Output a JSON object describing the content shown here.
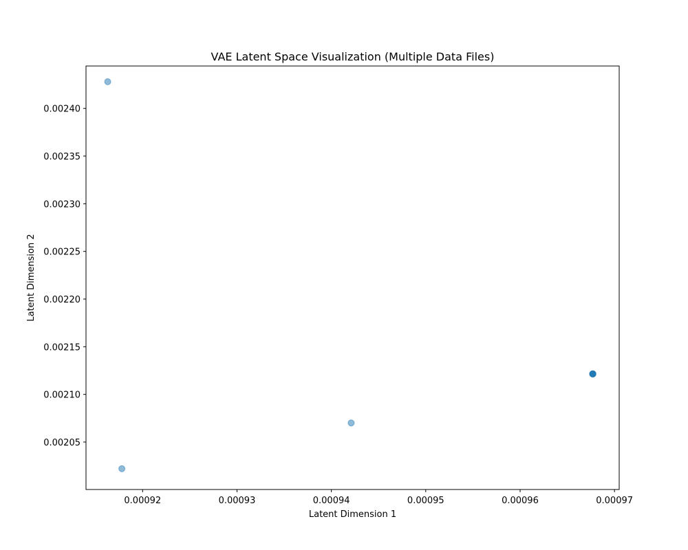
{
  "chart_data": {
    "type": "scatter",
    "title": "VAE Latent Space Visualization (Multiple Data Files)",
    "xlabel": "Latent Dimension 1",
    "ylabel": "Latent Dimension 2",
    "xlim": [
      0.000914,
      0.0009705
    ],
    "ylim": [
      0.0020002,
      0.0024445
    ],
    "x_ticks": [
      0.00092,
      0.00093,
      0.00094,
      0.00095,
      0.00096,
      0.00097
    ],
    "x_tick_labels": [
      "0.00092",
      "0.00093",
      "0.00094",
      "0.00095",
      "0.00096",
      "0.00097"
    ],
    "y_ticks": [
      0.00205,
      0.0021,
      0.00215,
      0.0022,
      0.00225,
      0.0023,
      0.00235,
      0.0024
    ],
    "y_tick_labels": [
      "0.00205",
      "0.00210",
      "0.00215",
      "0.00220",
      "0.00225",
      "0.00230",
      "0.00235",
      "0.00240"
    ],
    "grid": false,
    "points": [
      {
        "x": 0.0009163,
        "y": 0.002428
      },
      {
        "x": 0.0009178,
        "y": 0.002022
      },
      {
        "x": 0.0009421,
        "y": 0.00207
      },
      {
        "x": 0.0009677,
        "y": 0.0021215
      },
      {
        "x": 0.0009677,
        "y": 0.0021215
      },
      {
        "x": 0.0009677,
        "y": 0.0021215
      },
      {
        "x": 0.0009677,
        "y": 0.0021215
      },
      {
        "x": 0.0009677,
        "y": 0.0021215
      },
      {
        "x": 0.0009677,
        "y": 0.0021215
      }
    ],
    "marker_color": "#1f77b4",
    "marker_alpha": 0.5
  }
}
